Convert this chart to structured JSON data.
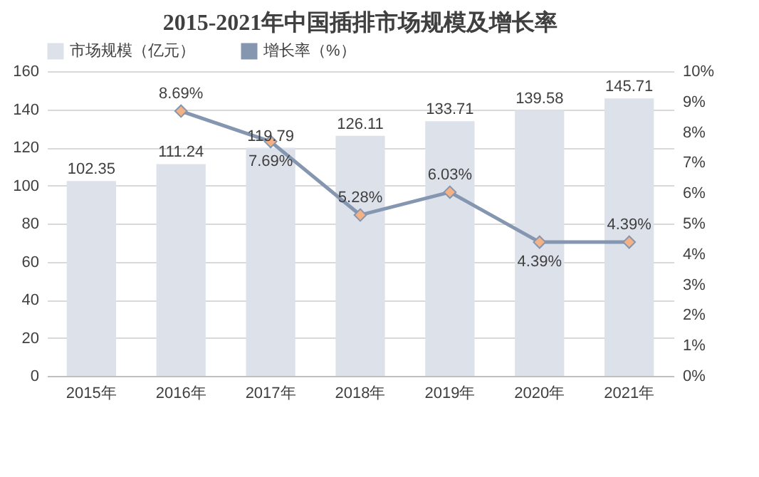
{
  "chart_data": {
    "type": "bar",
    "title": "2015-2021年中国插排市场规模及增长率",
    "categories": [
      "2015年",
      "2016年",
      "2017年",
      "2018年",
      "2019年",
      "2020年",
      "2021年"
    ],
    "series": [
      {
        "name": "市场规模（亿元）",
        "color": "#dde1ea",
        "values": [
          102.35,
          111.24,
          119.79,
          126.11,
          133.71,
          139.58,
          145.71
        ]
      },
      {
        "name": "增长率（%）",
        "type": "line",
        "axis": "y2",
        "color": "#8496b0",
        "values": [
          null,
          8.69,
          7.69,
          5.28,
          6.03,
          4.39,
          4.39
        ],
        "value_labels": [
          null,
          "8.69%",
          "7.69%",
          "5.28%",
          "6.03%",
          "4.39%",
          "4.39%"
        ]
      }
    ],
    "data_labels": true,
    "marker": "diamond",
    "legend": "top",
    "grid": "y",
    "ylim": [
      0,
      160
    ],
    "yticks": [
      0,
      20,
      40,
      60,
      80,
      100,
      120,
      140,
      160
    ],
    "y2lim": [
      0,
      10
    ],
    "y2ticks": [
      {
        "value": 0,
        "label": "0%"
      },
      {
        "value": 1,
        "label": "1%"
      },
      {
        "value": 2,
        "label": "2%"
      },
      {
        "value": 3,
        "label": "3%"
      },
      {
        "value": 4,
        "label": "4%"
      },
      {
        "value": 5,
        "label": "5%"
      },
      {
        "value": 6,
        "label": "6%"
      },
      {
        "value": 7,
        "label": "7%"
      },
      {
        "value": 8,
        "label": "8%"
      },
      {
        "value": 9,
        "label": "9%"
      },
      {
        "value": 10,
        "label": "10%"
      }
    ]
  }
}
